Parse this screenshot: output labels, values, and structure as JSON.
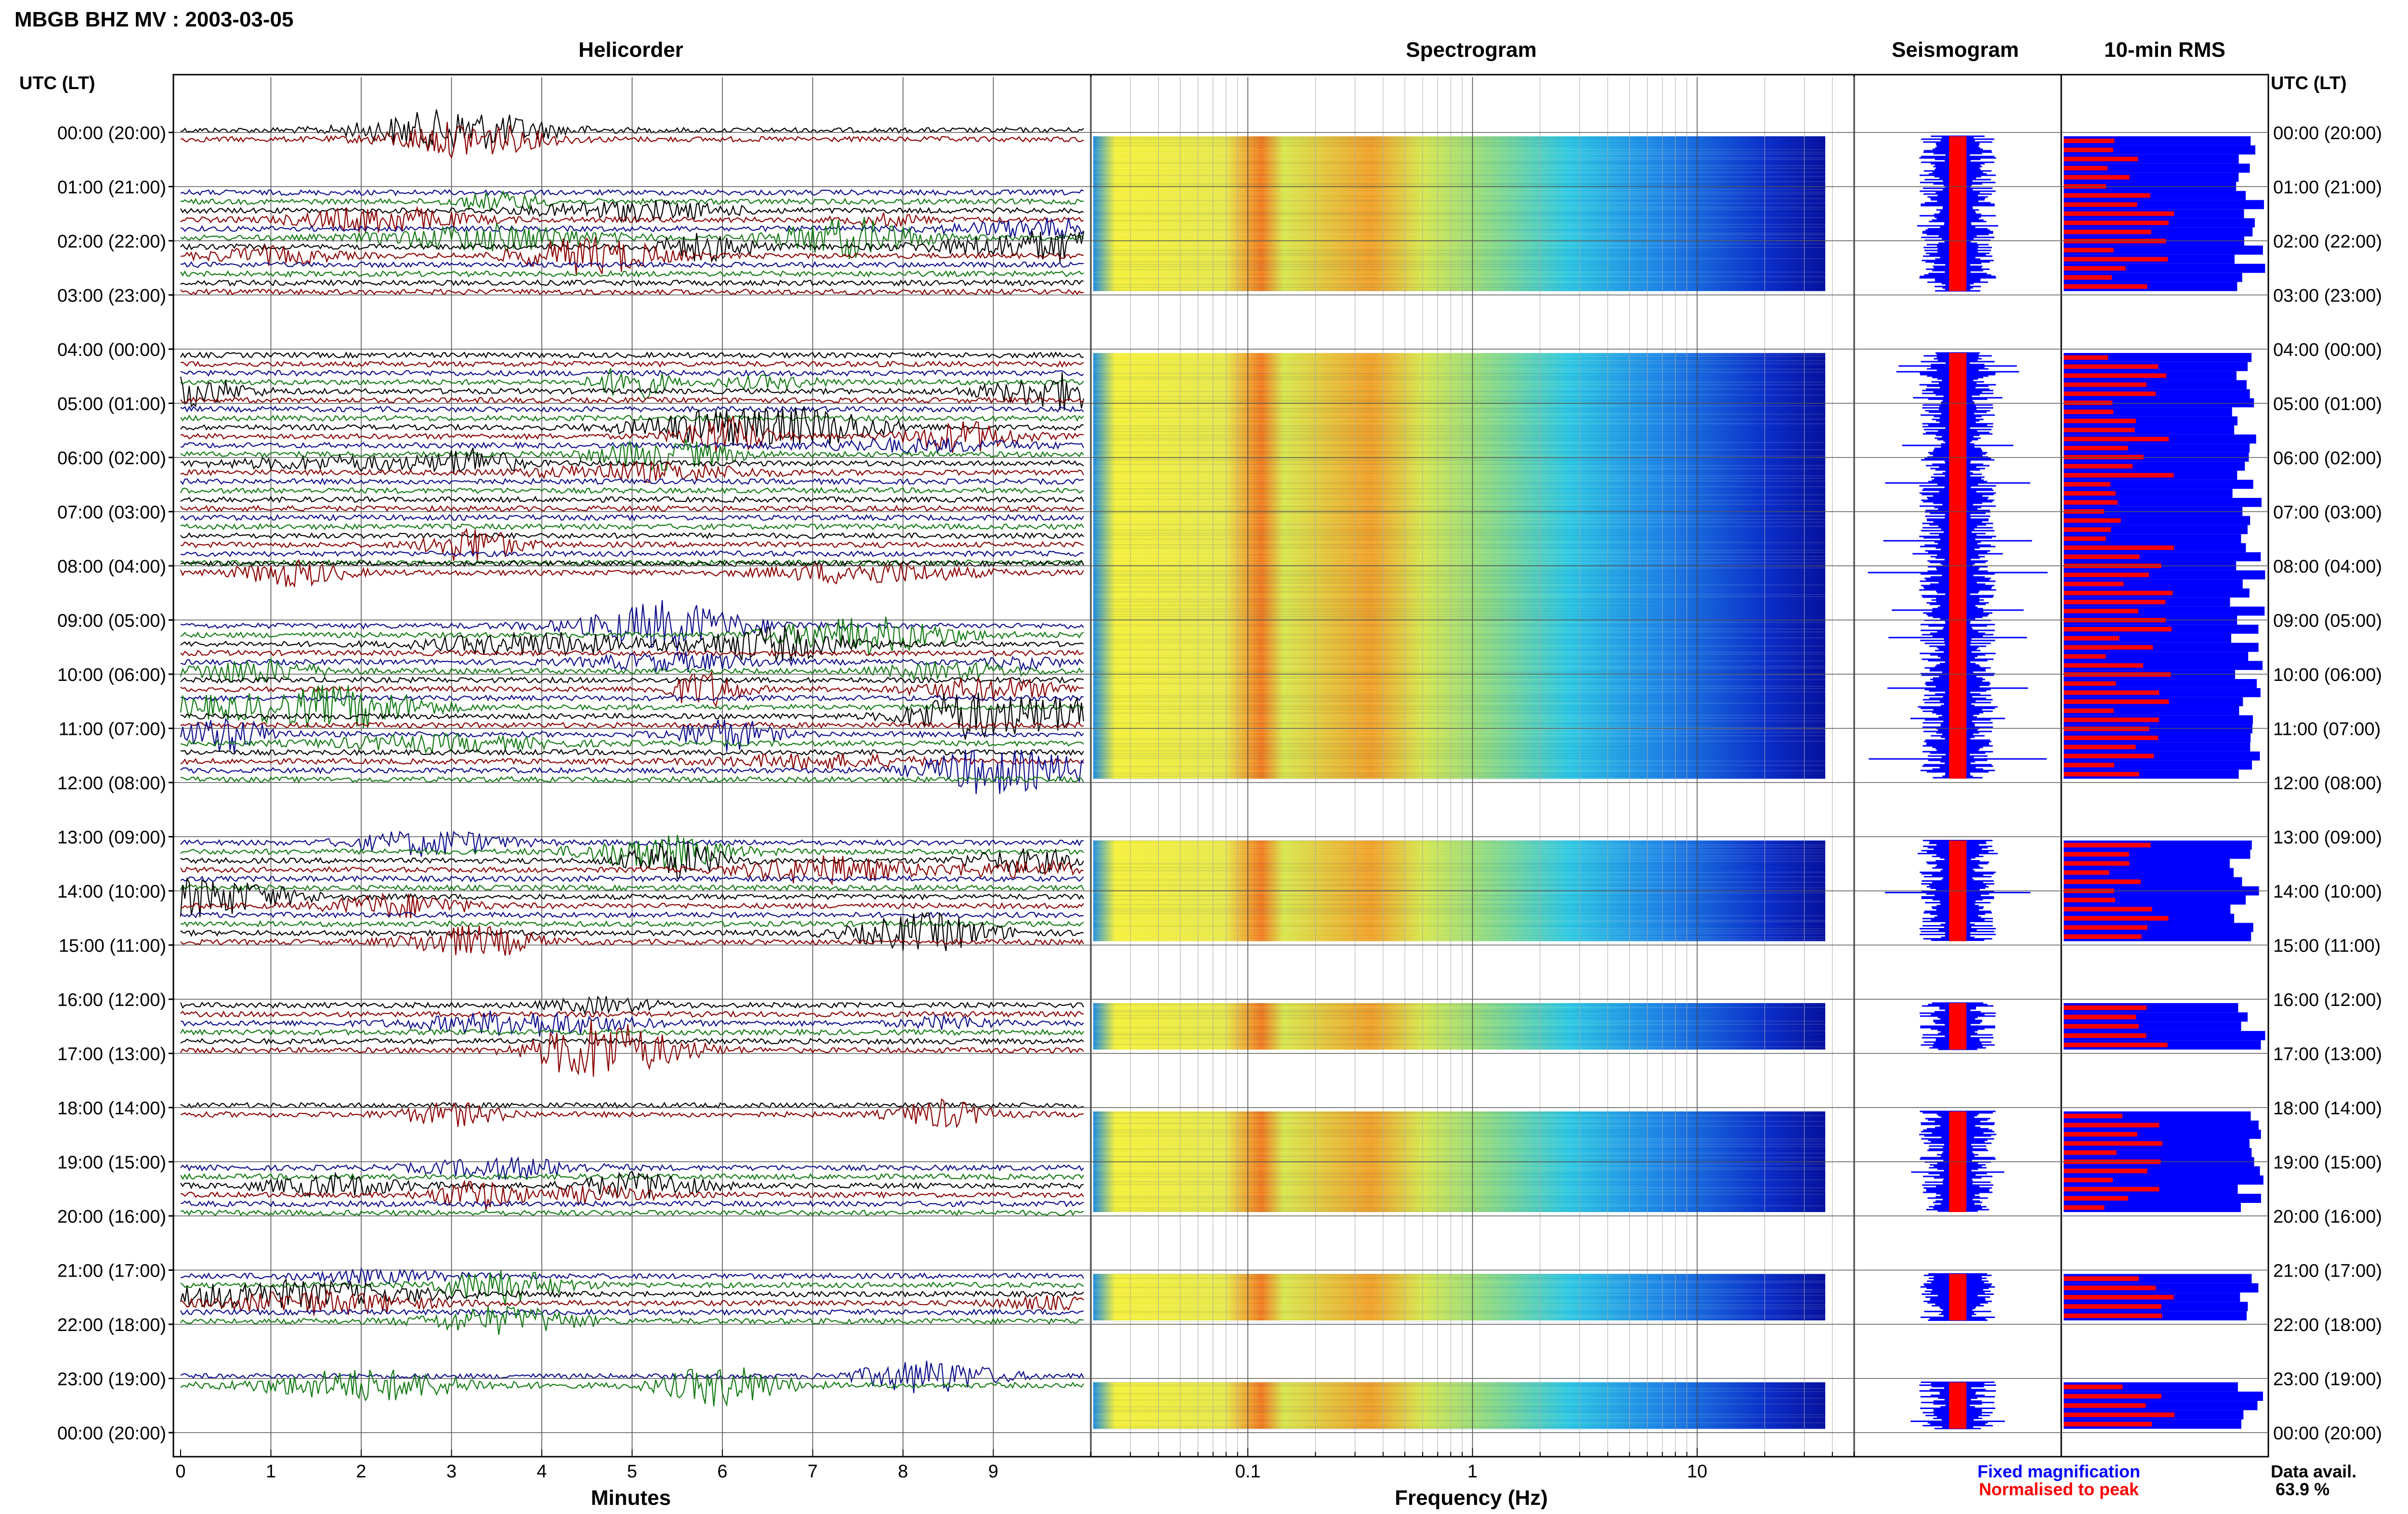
{
  "header": {
    "title": "MBGB BHZ MV : 2003-03-05"
  },
  "panels": {
    "helicorder": "Helicorder",
    "spectrogram": "Spectrogram",
    "seismogram": "Seismogram",
    "rms": "10-min RMS"
  },
  "axis_caption": "UTC (LT)",
  "time_labels": [
    "00:00 (20:00)",
    "01:00 (21:00)",
    "02:00 (22:00)",
    "03:00 (23:00)",
    "04:00 (00:00)",
    "05:00 (01:00)",
    "06:00 (02:00)",
    "07:00 (03:00)",
    "08:00 (04:00)",
    "09:00 (05:00)",
    "10:00 (06:00)",
    "11:00 (07:00)",
    "12:00 (08:00)",
    "13:00 (09:00)",
    "14:00 (10:00)",
    "15:00 (11:00)",
    "16:00 (12:00)",
    "17:00 (13:00)",
    "18:00 (14:00)",
    "19:00 (15:00)",
    "20:00 (16:00)",
    "21:00 (17:00)",
    "22:00 (18:00)",
    "23:00 (19:00)",
    "00:00 (20:00)"
  ],
  "legend": {
    "fixed": "Fixed magnification",
    "normalised": "Normalised to peak",
    "avail_label": "Data avail.",
    "avail_value": "63.9 %"
  },
  "colors": {
    "trace_cycle": [
      "#000000",
      "#8b0000",
      "#0b0b8c",
      "#117a11"
    ],
    "fixed": "#0000ff",
    "normalised": "#ff0000",
    "grid": "#000000"
  },
  "chart_data": [
    {
      "type": "line",
      "title": "Helicorder",
      "xlabel": "Minutes",
      "ylabel": "UTC (LT)",
      "xlim": [
        0,
        10
      ],
      "x_ticks": [
        "0",
        "1",
        "2",
        "3",
        "4",
        "5",
        "6",
        "7",
        "8",
        "9"
      ],
      "hours": 24,
      "traces_per_hour": 6,
      "data_hours": [
        0,
        1,
        2,
        4,
        5,
        6,
        7,
        8,
        9,
        10,
        11,
        13,
        14,
        16,
        18,
        19,
        21,
        23
      ],
      "grid": true
    },
    {
      "type": "heatmap",
      "title": "Spectrogram",
      "xlabel": "Frequency (Hz)",
      "x_scale": "log",
      "x_ticks": [
        "0.1",
        "1",
        "10"
      ],
      "xlim": [
        0.02,
        50
      ]
    },
    {
      "type": "bar",
      "title": "Seismogram",
      "series": [
        {
          "name": "Fixed magnification"
        },
        {
          "name": "Normalised to peak"
        }
      ]
    },
    {
      "type": "bar",
      "title": "10-min RMS",
      "series": [
        {
          "name": "Fixed magnification"
        },
        {
          "name": "Normalised to peak"
        }
      ],
      "data_availability_percent": 63.9
    }
  ]
}
